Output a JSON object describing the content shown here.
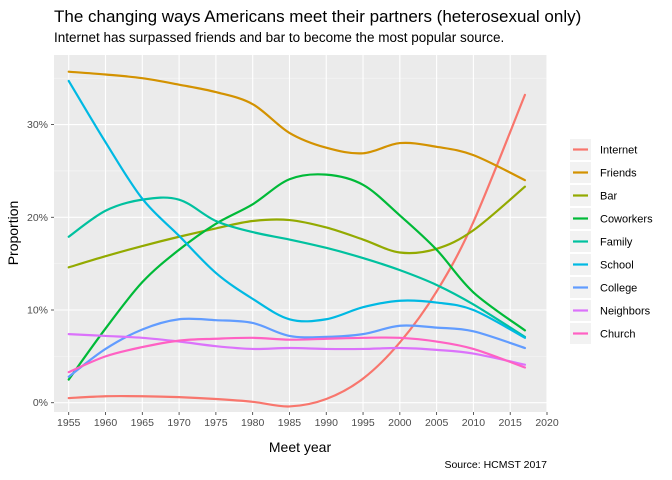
{
  "chart_data": {
    "type": "line",
    "title": "The changing ways Americans meet their partners (heterosexual only)",
    "subtitle": "Internet has surpassed friends and bar to become the most popular source.",
    "xlabel": "Meet year",
    "ylabel": "Proportion",
    "caption": "Source: HCMST 2017",
    "xlim": [
      1953,
      2020
    ],
    "ylim": [
      -0.01,
      0.375
    ],
    "x_ticks": [
      1955,
      1960,
      1965,
      1970,
      1975,
      1980,
      1985,
      1990,
      1995,
      2000,
      2005,
      2010,
      2015,
      2020
    ],
    "y_ticks": [
      0,
      0.1,
      0.2,
      0.3
    ],
    "y_tick_labels": [
      "0%",
      "10%",
      "20%",
      "30%"
    ],
    "grid": true,
    "legend_position": "right",
    "x": [
      1955,
      1960,
      1965,
      1970,
      1975,
      1980,
      1985,
      1990,
      1995,
      2000,
      2005,
      2010,
      2017
    ],
    "series": [
      {
        "name": "Internet",
        "color": "#F8766D",
        "values": [
          0.005,
          0.007,
          0.007,
          0.006,
          0.004,
          0.001,
          -0.004,
          0.004,
          0.026,
          0.065,
          0.12,
          0.195,
          0.332
        ]
      },
      {
        "name": "Friends",
        "color": "#D39200",
        "values": [
          0.357,
          0.354,
          0.35,
          0.343,
          0.335,
          0.322,
          0.291,
          0.275,
          0.269,
          0.28,
          0.276,
          0.267,
          0.24
        ]
      },
      {
        "name": "Bar",
        "color": "#93AA00",
        "values": [
          0.146,
          0.158,
          0.169,
          0.179,
          0.188,
          0.196,
          0.197,
          0.189,
          0.176,
          0.162,
          0.166,
          0.186,
          0.233
        ]
      },
      {
        "name": "Coworkers",
        "color": "#00BA38",
        "values": [
          0.025,
          0.08,
          0.13,
          0.165,
          0.193,
          0.214,
          0.241,
          0.246,
          0.235,
          0.202,
          0.165,
          0.119,
          0.078
        ]
      },
      {
        "name": "Family",
        "color": "#00C19F",
        "values": [
          0.179,
          0.207,
          0.219,
          0.219,
          0.196,
          0.184,
          0.176,
          0.167,
          0.156,
          0.143,
          0.127,
          0.106,
          0.071
        ]
      },
      {
        "name": "School",
        "color": "#00B9E3",
        "values": [
          0.347,
          0.281,
          0.22,
          0.18,
          0.14,
          0.112,
          0.09,
          0.09,
          0.103,
          0.11,
          0.108,
          0.1,
          0.07
        ]
      },
      {
        "name": "College",
        "color": "#619CFF",
        "values": [
          0.028,
          0.058,
          0.079,
          0.09,
          0.089,
          0.086,
          0.072,
          0.071,
          0.074,
          0.083,
          0.081,
          0.077,
          0.059
        ]
      },
      {
        "name": "Neighbors",
        "color": "#DB72FB",
        "values": [
          0.074,
          0.072,
          0.07,
          0.066,
          0.061,
          0.058,
          0.059,
          0.058,
          0.058,
          0.059,
          0.057,
          0.053,
          0.041
        ]
      },
      {
        "name": "Church",
        "color": "#FF61C3",
        "values": [
          0.033,
          0.05,
          0.06,
          0.067,
          0.069,
          0.07,
          0.068,
          0.069,
          0.07,
          0.07,
          0.066,
          0.058,
          0.038
        ]
      }
    ]
  }
}
